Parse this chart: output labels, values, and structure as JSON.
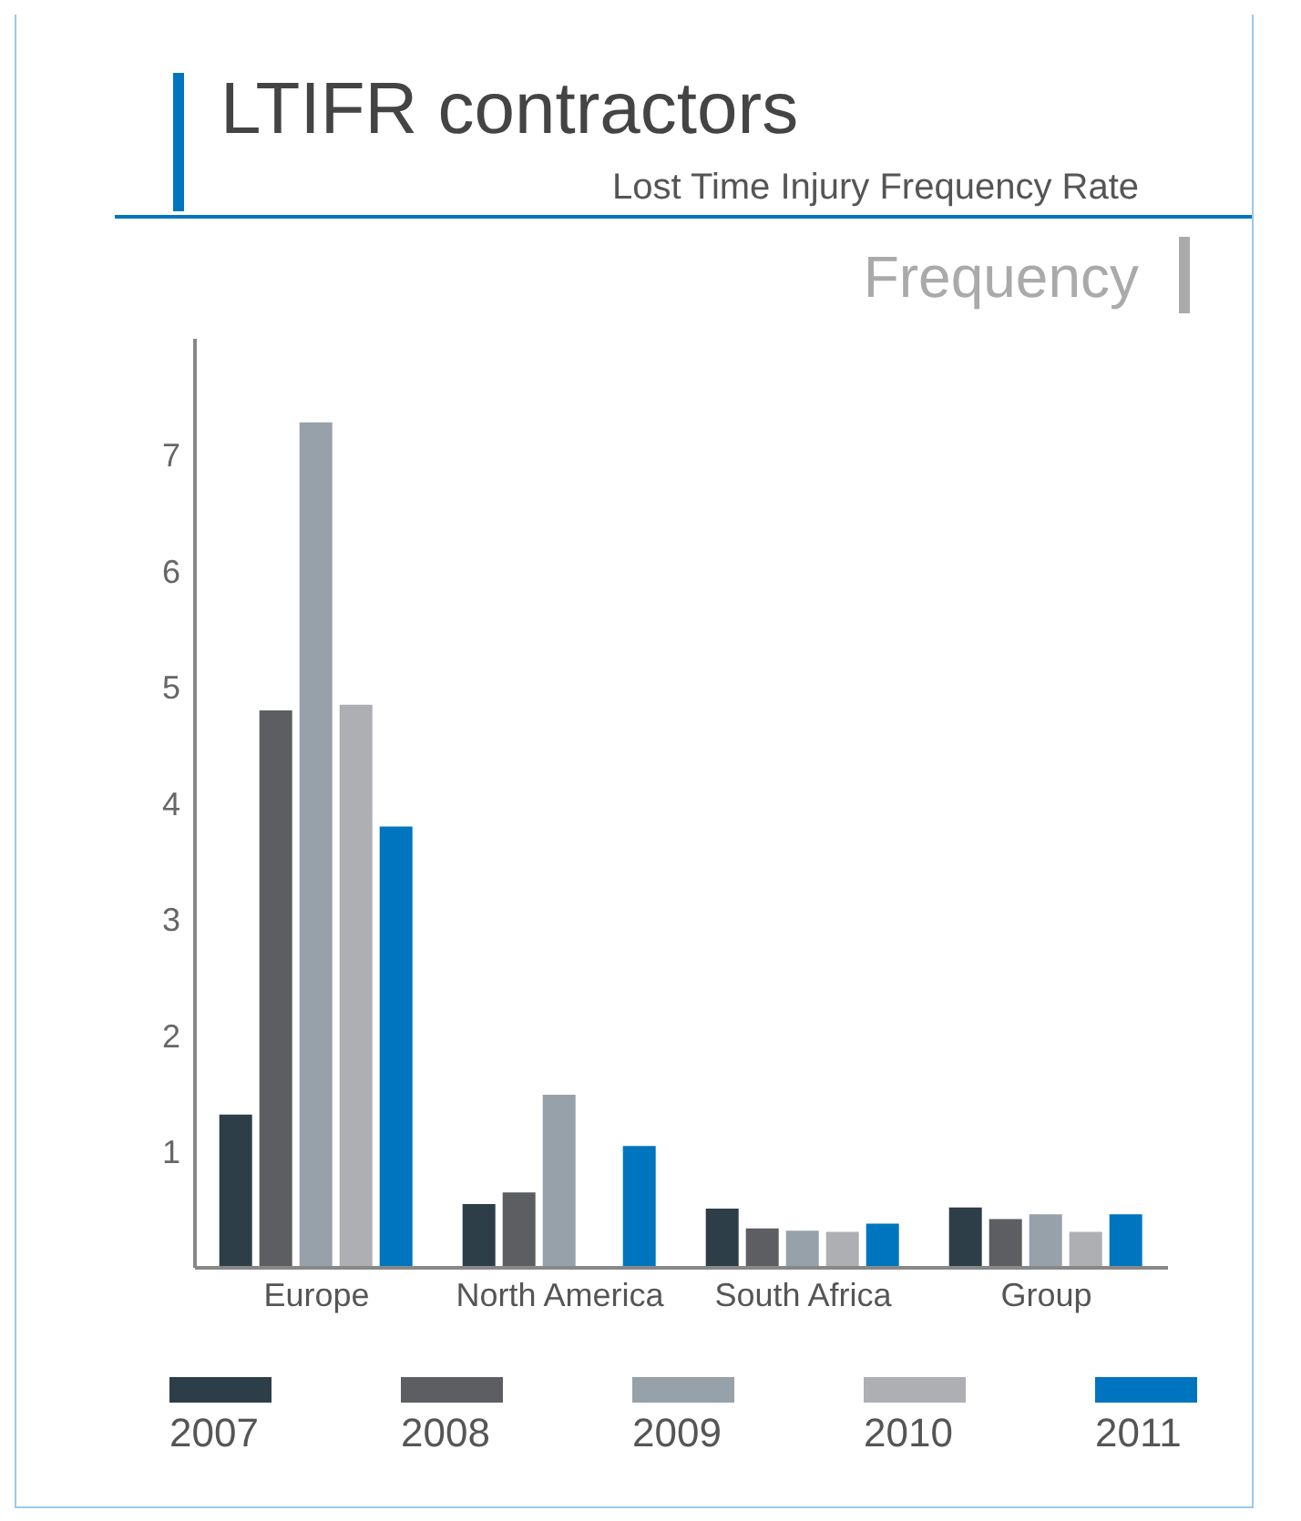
{
  "chart_data": {
    "type": "bar",
    "title": "LTIFR contractors",
    "subtitle": "Lost Time Injury Frequency Rate",
    "ylabel": "Frequency",
    "categories": [
      "Europe",
      "North America",
      "South Africa",
      "Group"
    ],
    "series": [
      {
        "name": "2007",
        "color": "#2e3e48",
        "values": [
          1.32,
          0.55,
          0.51,
          0.52
        ]
      },
      {
        "name": "2008",
        "color": "#5d5e62",
        "values": [
          4.8,
          0.65,
          0.34,
          0.42
        ]
      },
      {
        "name": "2009",
        "color": "#97a1a9",
        "values": [
          7.28,
          1.49,
          0.32,
          0.46
        ]
      },
      {
        "name": "2010",
        "color": "#aeafb2",
        "values": [
          4.85,
          null,
          0.31,
          0.31
        ]
      },
      {
        "name": "2011",
        "color": "#0075bf",
        "values": [
          3.8,
          1.05,
          0.38,
          0.46
        ]
      }
    ],
    "ylim": [
      0,
      8
    ],
    "yticks": [
      1,
      2,
      3,
      4,
      5,
      6,
      7
    ],
    "grid": false,
    "legend": "bottom"
  }
}
